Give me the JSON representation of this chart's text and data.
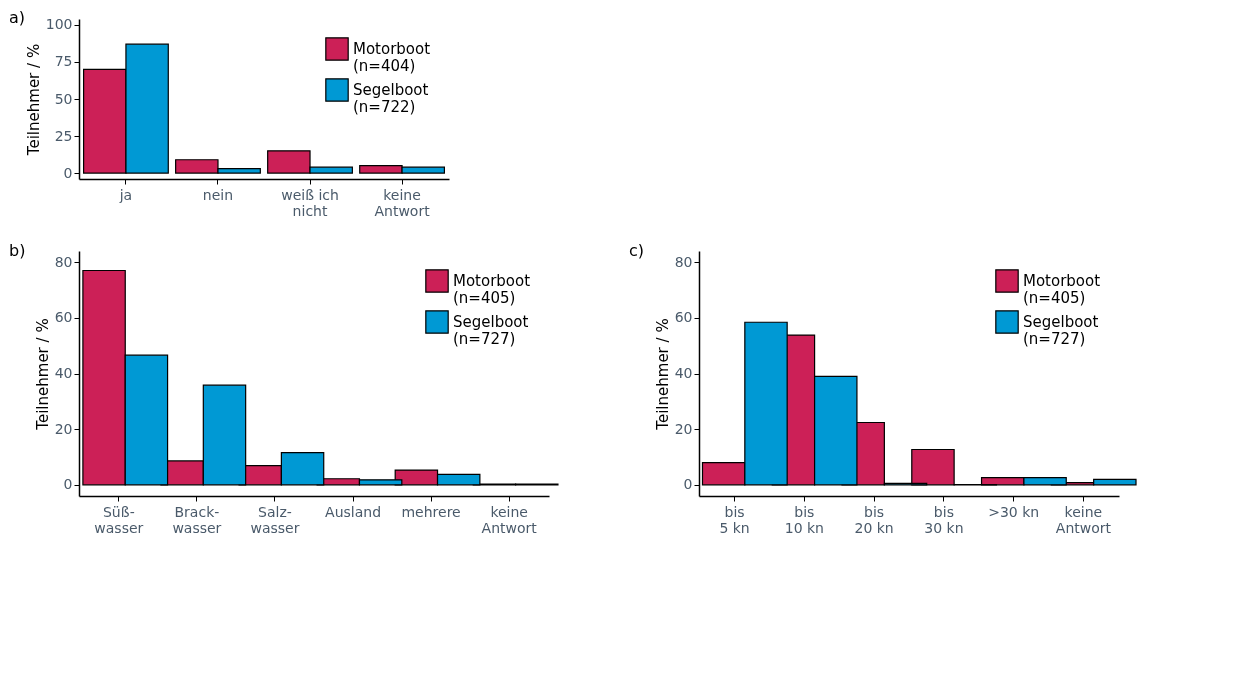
{
  "chart_data": [
    {
      "type": "bar",
      "title": "a)",
      "ylabel": "Teilnehmer / %",
      "categories": [
        "ja",
        "nein",
        "weiß ich\nnicht",
        "keine\nAntwort"
      ],
      "series": [
        {
          "name": "Motorboot\n(n=404)",
          "color": "#cc2057",
          "values": [
            70,
            9,
            15,
            5
          ]
        },
        {
          "name": "Segelboot\n(n=722)",
          "color": "#0099d4",
          "values": [
            87,
            3,
            4,
            4
          ]
        }
      ],
      "ylim": [
        -4,
        104
      ],
      "yticks": [
        0,
        25,
        50,
        75,
        100
      ],
      "legend": "top right",
      "grid": false
    },
    {
      "type": "bar",
      "title": "b)",
      "ylabel": "Teilnehmer / %",
      "categories": [
        "Süß-\nwasser",
        "Brack-\nwasser",
        "Salz-\nwasser",
        "Ausland",
        "mehrere",
        "keine\nAntwort"
      ],
      "series": [
        {
          "name": "Motorboot\n(n=405)",
          "color": "#cc2057",
          "values": [
            77,
            8.6,
            6.9,
            2.2,
            5.3,
            0.3
          ]
        },
        {
          "name": "Segelboot\n(n=727)",
          "color": "#0099d4",
          "values": [
            46.6,
            35.8,
            11.6,
            1.8,
            3.8,
            0.3
          ]
        }
      ],
      "ylim": [
        -4,
        84
      ],
      "yticks": [
        0,
        20,
        40,
        60,
        80
      ],
      "legend": "top right",
      "grid": false
    },
    {
      "type": "bar",
      "title": "c)",
      "ylabel": "Teilnehmer / %",
      "categories": [
        "bis\n5 kn",
        "bis\n10 kn",
        "bis\n20 kn",
        "bis\n30 kn",
        ">30 kn",
        "keine\nAntwort"
      ],
      "series": [
        {
          "name": "Motorboot\n(n=405)",
          "color": "#cc2057",
          "values": [
            8,
            53.8,
            22.4,
            12.7,
            2.6,
            0.8
          ]
        },
        {
          "name": "Segelboot\n(n=727)",
          "color": "#0099d4",
          "values": [
            58.4,
            39,
            0.5,
            0.1,
            2.6,
            2
          ]
        }
      ],
      "ylim": [
        -4,
        84
      ],
      "yticks": [
        0,
        20,
        40,
        60,
        80
      ],
      "legend": "top right",
      "grid": false
    }
  ]
}
